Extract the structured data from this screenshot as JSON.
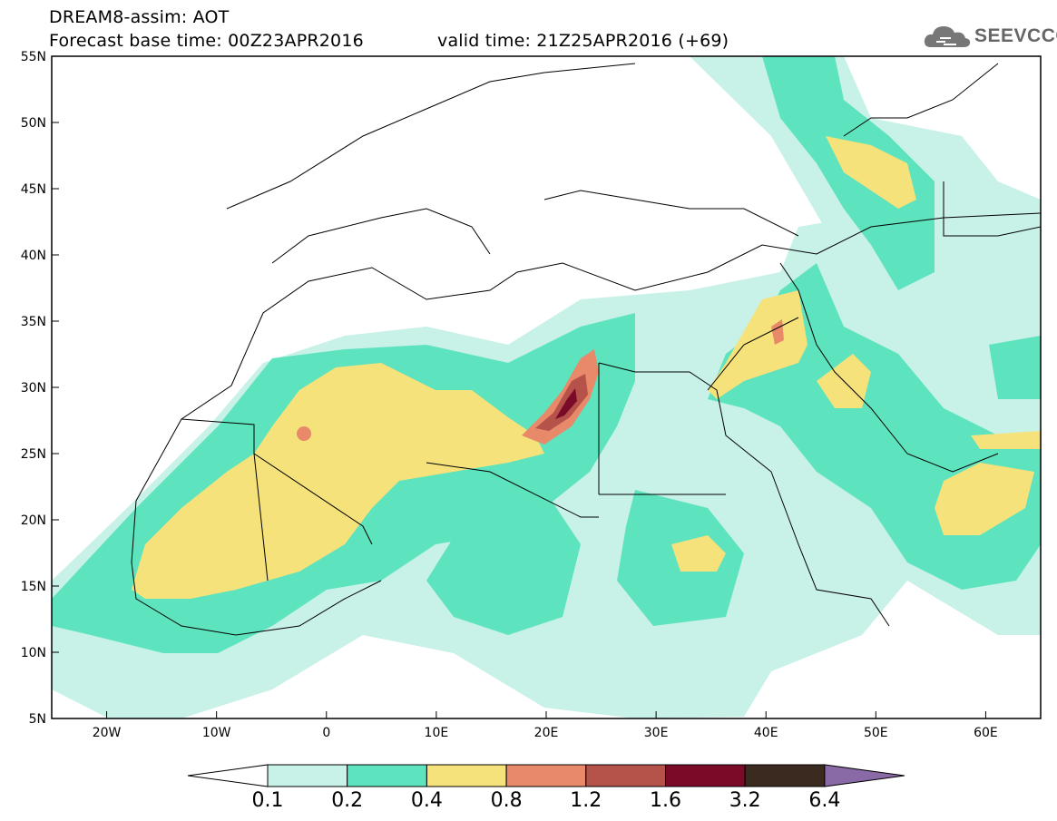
{
  "header": {
    "title_line1": "DREAM8-assim: AOT",
    "title_line2": "Forecast base time: 00Z23APR2016",
    "valid_time": "valid time: 21Z25APR2016 (+69)"
  },
  "logo": {
    "text": "SEEVCCC",
    "icon": "cloud-icon"
  },
  "map": {
    "region": "North Africa, Europe and Middle East",
    "lon_range": [
      -25,
      65
    ],
    "lat_range": [
      5,
      55
    ],
    "lat_labels": [
      "55N",
      "50N",
      "45N",
      "40N",
      "35N",
      "30N",
      "25N",
      "20N",
      "15N",
      "10N",
      "5N"
    ],
    "lon_labels": [
      "20W",
      "10W",
      "0",
      "10E",
      "20E",
      "30E",
      "40E",
      "50E",
      "60E"
    ],
    "variable": "Aerosol Optical Thickness"
  },
  "colorbar": {
    "levels": [
      "0.1",
      "0.2",
      "0.4",
      "0.8",
      "1.2",
      "1.6",
      "3.2",
      "6.4"
    ],
    "colors": [
      "#c8f1e8",
      "#5ee3bf",
      "#f5e27a",
      "#e8896a",
      "#b5524a",
      "#7a0a28",
      "#3b2a1f"
    ],
    "under_color": "#ffffff",
    "over_color": "#8a6aa6"
  }
}
